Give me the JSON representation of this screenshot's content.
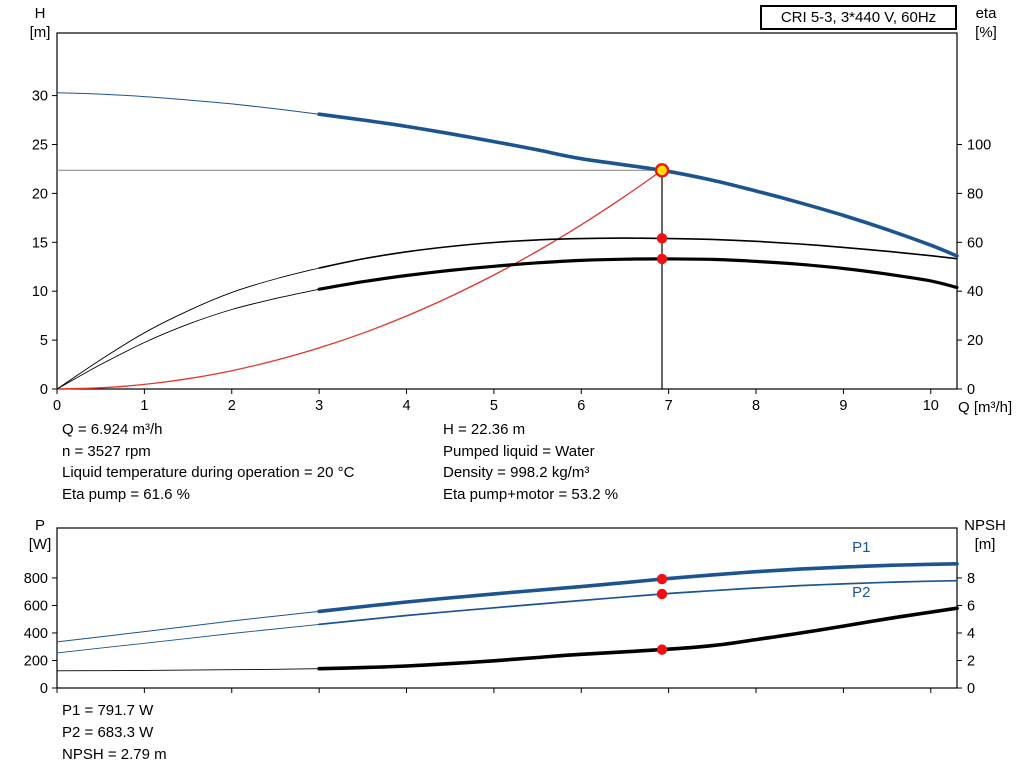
{
  "colors": {
    "blue": "#1c5490",
    "black": "#000000",
    "red_curve": "#e0352b",
    "dot": "#ee1111",
    "duty_point": "#ffe000",
    "guide": "#8f8f8f"
  },
  "annotations": {
    "left": [
      "Q = 6.924 m³/h",
      "n = 3527 rpm",
      "Liquid temperature during operation = 20 °C",
      "Eta pump = 61.6 %"
    ],
    "right": [
      "H = 22.36 m",
      "Pumped liquid = Water",
      "Density = 998.2 kg/m³",
      "Eta pump+motor = 53.2 %"
    ],
    "bottom": [
      "P1 = 791.7 W",
      "P2 = 683.3 W",
      "NPSH = 2.79 m"
    ]
  },
  "chart_data": [
    {
      "name": "hq-eta-chart",
      "type": "line",
      "title": "CRI 5-3, 3*440 V, 60Hz",
      "x_axis": {
        "label": "Q [m³/h]",
        "min": 0,
        "max": 10.3,
        "ticks": [
          0,
          1,
          2,
          3,
          4,
          5,
          6,
          7,
          8,
          9,
          10
        ]
      },
      "left_axis": {
        "label": "H",
        "unit": "[m]",
        "min": 0,
        "max": 36.4,
        "ticks": [
          0,
          5,
          10,
          15,
          20,
          25,
          30
        ]
      },
      "right_axis": {
        "label": "eta",
        "unit": "[%]",
        "min": 0,
        "max": 145.6,
        "ticks": [
          0,
          20,
          40,
          60,
          80,
          100
        ]
      },
      "duty_point": {
        "q": 6.924,
        "h": 22.36,
        "eta_pump": 61.6,
        "eta_pump_motor": 53.2
      },
      "guides": {
        "h_line": {
          "y": 22.36,
          "x_from": 0,
          "x_to": 6.924
        },
        "v_line": {
          "x": 6.924,
          "y_from": 0,
          "y_to": 22.36
        }
      },
      "series": [
        {
          "name": "system-curve",
          "axis": "left",
          "color": "#e0352b",
          "width": 1.3,
          "points": [
            [
              0,
              0
            ],
            [
              0.5,
              0.12
            ],
            [
              1,
              0.47
            ],
            [
              1.5,
              1.05
            ],
            [
              2,
              1.87
            ],
            [
              2.5,
              2.92
            ],
            [
              3,
              4.2
            ],
            [
              3.5,
              5.71
            ],
            [
              4,
              7.46
            ],
            [
              4.5,
              9.45
            ],
            [
              5,
              11.66
            ],
            [
              5.5,
              14.11
            ],
            [
              6,
              16.79
            ],
            [
              6.5,
              19.71
            ],
            [
              6.924,
              22.36
            ]
          ]
        },
        {
          "name": "eta-pump",
          "axis": "right",
          "color": "#000000",
          "width": 1.6,
          "thin_width": 0.9,
          "thin_until": 3,
          "points": [
            [
              0,
              0
            ],
            [
              0.5,
              12
            ],
            [
              1,
              23
            ],
            [
              1.5,
              32
            ],
            [
              2,
              39.5
            ],
            [
              2.5,
              45
            ],
            [
              3,
              49.5
            ],
            [
              3.5,
              53.2
            ],
            [
              4,
              56.1
            ],
            [
              4.5,
              58.3
            ],
            [
              5,
              59.9
            ],
            [
              5.5,
              61
            ],
            [
              6,
              61.5
            ],
            [
              6.5,
              61.7
            ],
            [
              6.924,
              61.6
            ],
            [
              7.5,
              61.2
            ],
            [
              8,
              60.4
            ],
            [
              8.5,
              59.3
            ],
            [
              9,
              57.9
            ],
            [
              9.5,
              56.3
            ],
            [
              10,
              54.5
            ],
            [
              10.3,
              53.3
            ]
          ]
        },
        {
          "name": "eta-pump-motor",
          "axis": "right",
          "color": "#000000",
          "width": 3.2,
          "thin_width": 0.9,
          "thin_until": 3,
          "points": [
            [
              0,
              0
            ],
            [
              0.5,
              10
            ],
            [
              1,
              19
            ],
            [
              1.5,
              26.5
            ],
            [
              2,
              32.5
            ],
            [
              2.5,
              37
            ],
            [
              3,
              40.8
            ],
            [
              3.5,
              43.9
            ],
            [
              4,
              46.4
            ],
            [
              4.5,
              48.5
            ],
            [
              5,
              50.2
            ],
            [
              5.5,
              51.6
            ],
            [
              6,
              52.6
            ],
            [
              6.5,
              53.1
            ],
            [
              6.924,
              53.2
            ],
            [
              7.5,
              53
            ],
            [
              8,
              52.2
            ],
            [
              8.5,
              51
            ],
            [
              9,
              49.3
            ],
            [
              9.5,
              47
            ],
            [
              10,
              44.2
            ],
            [
              10.3,
              41.5
            ]
          ]
        },
        {
          "name": "H",
          "axis": "left",
          "color": "#1c5490",
          "width": 3.6,
          "thin_width": 1,
          "thin_until": 3,
          "points": [
            [
              0,
              30.3
            ],
            [
              0.5,
              30.15
            ],
            [
              1,
              29.9
            ],
            [
              1.5,
              29.55
            ],
            [
              2,
              29.15
            ],
            [
              2.5,
              28.65
            ],
            [
              3,
              28.1
            ],
            [
              3.5,
              27.5
            ],
            [
              4,
              26.85
            ],
            [
              4.5,
              26.1
            ],
            [
              5,
              25.3
            ],
            [
              5.5,
              24.45
            ],
            [
              6,
              23.55
            ],
            [
              6.924,
              22.36
            ],
            [
              7.5,
              21.35
            ],
            [
              8,
              20.25
            ],
            [
              8.5,
              19.05
            ],
            [
              9,
              17.75
            ],
            [
              9.5,
              16.3
            ],
            [
              10,
              14.7
            ],
            [
              10.3,
              13.6
            ]
          ]
        }
      ],
      "markers": [
        {
          "name": "eta-pump-dot",
          "x": 6.924,
          "y": 61.6,
          "axis": "right",
          "style": "dot"
        },
        {
          "name": "eta-pump-motor-dot",
          "x": 6.924,
          "y": 53.2,
          "axis": "right",
          "style": "dot"
        },
        {
          "name": "duty-point",
          "x": 6.924,
          "y": 22.36,
          "axis": "left",
          "style": "duty"
        }
      ]
    },
    {
      "name": "power-npsh-chart",
      "type": "line",
      "x_axis": {
        "min": 0,
        "max": 10.3,
        "ticks": [
          0,
          1,
          2,
          3,
          4,
          5,
          6,
          7,
          8,
          9,
          10
        ]
      },
      "left_axis": {
        "label": "P",
        "unit": "[W]",
        "min": 0,
        "max": 1163,
        "ticks": [
          0,
          200,
          400,
          600,
          800
        ]
      },
      "right_axis": {
        "label": "NPSH",
        "unit": "[m]",
        "min": 0,
        "max": 11.63,
        "ticks": [
          0,
          2,
          4,
          6,
          8
        ]
      },
      "series": [
        {
          "name": "P2",
          "axis": "left",
          "color": "#1c5490",
          "width": 1.7,
          "thin_width": 0.9,
          "thin_until": 3,
          "label": {
            "text": "P2",
            "x": 9.1,
            "y": 660
          },
          "points": [
            [
              0,
              255
            ],
            [
              1,
              325
            ],
            [
              2,
              396
            ],
            [
              3,
              462
            ],
            [
              4,
              527
            ],
            [
              5,
              583
            ],
            [
              6,
              636
            ],
            [
              6.924,
              683.3
            ],
            [
              7.5,
              707
            ],
            [
              8,
              727
            ],
            [
              8.5,
              744
            ],
            [
              9,
              757
            ],
            [
              9.5,
              768
            ],
            [
              10,
              776
            ],
            [
              10.3,
              780
            ]
          ]
        },
        {
          "name": "P1",
          "axis": "left",
          "color": "#1c5490",
          "width": 3.6,
          "thin_width": 1,
          "thin_until": 3,
          "label": {
            "text": "P1",
            "x": 9.1,
            "y": 990
          },
          "points": [
            [
              0,
              335
            ],
            [
              1,
              410
            ],
            [
              2,
              487
            ],
            [
              3,
              557
            ],
            [
              4,
              625
            ],
            [
              5,
              684
            ],
            [
              6,
              737
            ],
            [
              6.924,
              791.7
            ],
            [
              7.5,
              822
            ],
            [
              8,
              845
            ],
            [
              8.5,
              864
            ],
            [
              9,
              879
            ],
            [
              9.5,
              891
            ],
            [
              10,
              899
            ],
            [
              10.3,
              903
            ]
          ]
        },
        {
          "name": "NPSH",
          "axis": "right",
          "color": "#000000",
          "width": 3.6,
          "thin_width": 0.9,
          "thin_until": 3,
          "points": [
            [
              0,
              1.25
            ],
            [
              0.5,
              1.26
            ],
            [
              1,
              1.28
            ],
            [
              1.5,
              1.3
            ],
            [
              2,
              1.33
            ],
            [
              2.5,
              1.36
            ],
            [
              3,
              1.4
            ],
            [
              3.5,
              1.48
            ],
            [
              4,
              1.6
            ],
            [
              4.5,
              1.77
            ],
            [
              5,
              1.98
            ],
            [
              5.5,
              2.22
            ],
            [
              6,
              2.45
            ],
            [
              6.924,
              2.79
            ],
            [
              7.5,
              3.08
            ],
            [
              8,
              3.52
            ],
            [
              8.5,
              3.99
            ],
            [
              9,
              4.5
            ],
            [
              9.5,
              5.03
            ],
            [
              10,
              5.52
            ],
            [
              10.3,
              5.8
            ]
          ]
        }
      ],
      "markers": [
        {
          "name": "p1-dot",
          "x": 6.924,
          "y": 791.7,
          "axis": "left",
          "style": "dot"
        },
        {
          "name": "p2-dot",
          "x": 6.924,
          "y": 683.3,
          "axis": "left",
          "style": "dot"
        },
        {
          "name": "npsh-dot",
          "x": 6.924,
          "y": 2.79,
          "axis": "right",
          "style": "dot"
        }
      ]
    }
  ]
}
